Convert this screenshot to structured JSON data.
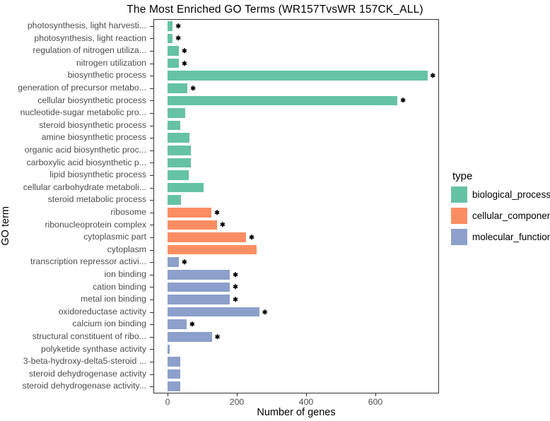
{
  "title": "The Most Enriched GO Terms (WR157TvsWR 157CK_ALL)",
  "x_axis": {
    "label": "Number of genes",
    "ticks": [
      "0",
      "200",
      "400",
      "600"
    ],
    "tick_values": [
      0,
      200,
      400,
      600
    ]
  },
  "y_axis": {
    "label": "GO term"
  },
  "legend": {
    "title": "type",
    "entries": [
      {
        "label": "biological_process",
        "color": "#66C2A5"
      },
      {
        "label": "cellular_component",
        "color": "#FC8D62"
      },
      {
        "label": "molecular_function",
        "color": "#8DA0CB"
      }
    ]
  },
  "chart_data": {
    "type": "bar",
    "orientation": "horizontal",
    "title": "The Most Enriched GO Terms (WR157TvsWR 157CK_ALL)",
    "xlabel": "Number of genes",
    "ylabel": "GO term",
    "xlim": [
      0,
      786
    ],
    "grid": false,
    "legend_position": "right",
    "significance_marker": "*",
    "colors": {
      "biological_process": "#66C2A5",
      "cellular_component": "#FC8D62",
      "molecular_function": "#8DA0CB"
    },
    "categories": [
      "photosynthesis, light harvesti...",
      "photosynthesis, light reaction",
      "regulation of nitrogen utiliza...",
      "nitrogen utilization",
      "biosynthetic process",
      "generation of precursor metabo...",
      "cellular biosynthetic process",
      "nucleotide-sugar metabolic pro...",
      "steroid biosynthetic process",
      "amine biosynthetic process",
      "organic acid biosynthetic proc...",
      "carboxylic acid biosynthetic p...",
      "lipid biosynthetic process",
      "cellular carbohydrate metaboli...",
      "steroid metabolic process",
      "ribosome",
      "ribonucleoprotein complex",
      "cytoplasmic part",
      "cytoplasm",
      "transcription repressor activi...",
      "ion binding",
      "cation binding",
      "metal ion binding",
      "oxidoreductase activity",
      "calcium ion binding",
      "structural constituent of ribo...",
      "polyketide synthase activity",
      "3-beta-hydroxy-delta5-steroid ...",
      "steroid dehydrogenase activity",
      "steroid dehydrogenase activity..."
    ],
    "values": [
      15,
      15,
      33,
      33,
      750,
      58,
      664,
      50,
      36,
      64,
      67,
      67,
      62,
      104,
      38,
      127,
      143,
      227,
      258,
      33,
      180,
      180,
      180,
      265,
      55,
      128,
      6,
      36,
      36,
      36
    ],
    "types": [
      "biological_process",
      "biological_process",
      "biological_process",
      "biological_process",
      "biological_process",
      "biological_process",
      "biological_process",
      "biological_process",
      "biological_process",
      "biological_process",
      "biological_process",
      "biological_process",
      "biological_process",
      "biological_process",
      "biological_process",
      "cellular_component",
      "cellular_component",
      "cellular_component",
      "cellular_component",
      "molecular_function",
      "molecular_function",
      "molecular_function",
      "molecular_function",
      "molecular_function",
      "molecular_function",
      "molecular_function",
      "molecular_function",
      "molecular_function",
      "molecular_function",
      "molecular_function"
    ],
    "significant": [
      true,
      true,
      true,
      true,
      true,
      true,
      true,
      false,
      false,
      false,
      false,
      false,
      false,
      false,
      false,
      true,
      true,
      true,
      false,
      true,
      true,
      true,
      true,
      true,
      true,
      true,
      false,
      false,
      false,
      false
    ]
  }
}
